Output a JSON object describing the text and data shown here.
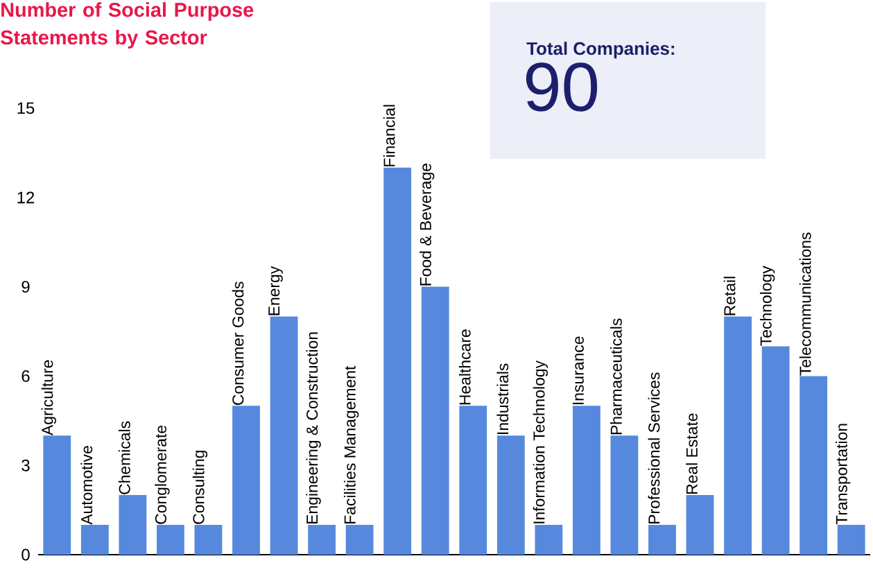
{
  "chart_data": {
    "type": "bar",
    "title": "Number of Social Purpose Statements by Sector",
    "categories": [
      "Agriculture",
      "Automotive",
      "Chemicals",
      "Conglomerate",
      "Consulting",
      "Consumer Goods",
      "Energy",
      "Engineering & Construction",
      "Facilities Management",
      "Financial",
      "Food & Beverage",
      "Healthcare",
      "Industrials",
      "Information Technology",
      "Insurance",
      "Pharmaceuticals",
      "Professional Services",
      "Real Estate",
      "Retail",
      "Technology",
      "Telecommunications",
      "Transportation"
    ],
    "values": [
      4,
      1,
      2,
      1,
      1,
      5,
      8,
      1,
      1,
      13,
      9,
      5,
      4,
      1,
      5,
      4,
      1,
      2,
      8,
      7,
      6,
      1
    ],
    "color": "#5689dd",
    "ylim": [
      0,
      15
    ],
    "yticks": [
      0,
      3,
      6,
      9,
      12,
      15
    ],
    "grid": false,
    "annotations": [
      "Total Companies:",
      "90"
    ]
  }
}
